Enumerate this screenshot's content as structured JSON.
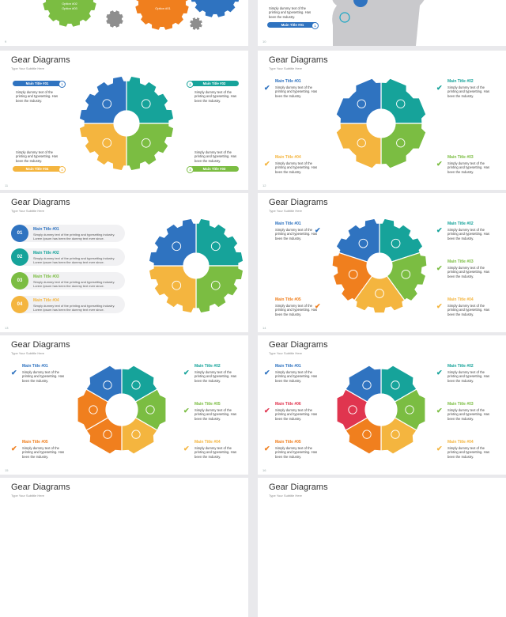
{
  "colors": {
    "blue": "#2f73c0",
    "teal": "#16a39a",
    "green": "#7bbd42",
    "yellow": "#f4b53f",
    "orange": "#f07f1e",
    "red": "#e0354f",
    "gray": "#8e8e8e"
  },
  "top_left": {
    "options": [
      "Option #02",
      "Option #03",
      "Option #01"
    ],
    "page": "9"
  },
  "top_right": {
    "body": "Simply dummy text of the printing and typesetting. Has been the Industry.",
    "pill": "Main Title #01",
    "num": "1",
    "page": "10"
  },
  "slide_title": "Gear Diagrams",
  "slide_subtitle": "Type Your Subtitle Here",
  "s11": {
    "page": "11",
    "items": [
      {
        "title": "Main Title #01",
        "num": "1",
        "body": "Simply dummy text of the printing and typesetting. Has been the Industry."
      },
      {
        "title": "Main Title #02",
        "num": "2",
        "body": "Simply dummy text of the printing and typesetting. Has been the Industry."
      },
      {
        "title": "Main Title #04",
        "num": "4",
        "body": "Simply dummy text of the printing and typesetting. Has been the Industry."
      },
      {
        "title": "Main Title #03",
        "num": "3",
        "body": "Simply dummy text of the printing and typesetting. Has been the Industry."
      }
    ]
  },
  "s12": {
    "page": "12",
    "items": [
      {
        "title": "Main Title #01",
        "body": "Simply dummy text of the printing and typesetting. Has been the Industry."
      },
      {
        "title": "Main Title #02",
        "body": "Simply dummy text of the printing and typesetting. Has been the Industry."
      },
      {
        "title": "Main Title #04",
        "body": "Simply dummy text of the printing and typesetting. Has been the Industry."
      },
      {
        "title": "Main Title #03",
        "body": "Simply dummy text of the printing and typesetting. Has been the Industry."
      }
    ]
  },
  "s13": {
    "page": "13",
    "rows": [
      {
        "num": "01",
        "title": "Main Title #01",
        "body": "Simply dummy text of the printing and typesetting industry. Lorem Ipsum has been the dummy text ever since."
      },
      {
        "num": "02",
        "title": "Main Title #02",
        "body": "Simply dummy text of the printing and typesetting industry. Lorem Ipsum has been the dummy text ever since."
      },
      {
        "num": "03",
        "title": "Main Title #03",
        "body": "Simply dummy text of the printing and typesetting industry. Lorem Ipsum has been the dummy text ever since."
      },
      {
        "num": "04",
        "title": "Main Title #04",
        "body": "Simply dummy text of the printing and typesetting industry. Lorem Ipsum has been the dummy text ever since."
      }
    ]
  },
  "s14": {
    "page": "14",
    "items": [
      {
        "title": "Main Title #01",
        "body": "Simply dummy text of the printing and typesetting. Has been the Industry."
      },
      {
        "title": "Main Title #02",
        "body": "Simply dummy text of the printing and typesetting. Has been the Industry."
      },
      {
        "title": "Main Title #05",
        "body": "Simply dummy text of the printing and typesetting. Has been the Industry."
      },
      {
        "title": "Main Title #03",
        "body": "Simply dummy text of the printing and typesetting. Has been the Industry."
      },
      {
        "title": "Main Title #04",
        "body": "Simply dummy text of the printing and typesetting. Has been the Industry."
      }
    ]
  },
  "s15": {
    "page": "15",
    "items": [
      {
        "title": "Main Title #01",
        "body": "Simply dummy text of the printing and typesetting. Has been the Industry."
      },
      {
        "title": "Main Title #02",
        "body": "Simply dummy text of the printing and typesetting. Has been the Industry."
      },
      {
        "title": "Main Title #05",
        "body": "Simply dummy text of the printing and typesetting. Has been the Industry."
      },
      {
        "title": "Main Title #03",
        "body": "Simply dummy text of the printing and typesetting. Has been the Industry."
      },
      {
        "title": "Main Title #05",
        "body": "Simply dummy text of the printing and typesetting. Has been the Industry."
      },
      {
        "title": "Main Title #04",
        "body": "Simply dummy text of the printing and typesetting. Has been the Industry."
      }
    ]
  },
  "s16": {
    "page": "16",
    "items": [
      {
        "title": "Main Title #01",
        "body": "Simply dummy text of the printing and typesetting. Has been the Industry."
      },
      {
        "title": "Main Title #02",
        "body": "Simply dummy text of the printing and typesetting. Has been the Industry."
      },
      {
        "title": "Main Title #06",
        "body": "Simply dummy text of the printing and typesetting. Has been the Industry."
      },
      {
        "title": "Main Title #03",
        "body": "Simply dummy text of the printing and typesetting. Has been the Industry."
      },
      {
        "title": "Main Title #05",
        "body": "Simply dummy text of the printing and typesetting. Has been the Industry."
      },
      {
        "title": "Main Title #04",
        "body": "Simply dummy text of the printing and typesetting. Has been the Industry."
      }
    ]
  }
}
